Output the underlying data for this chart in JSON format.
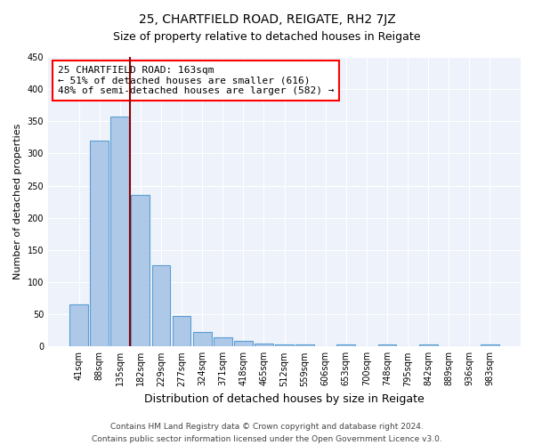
{
  "title": "25, CHARTFIELD ROAD, REIGATE, RH2 7JZ",
  "subtitle": "Size of property relative to detached houses in Reigate",
  "xlabel": "Distribution of detached houses by size in Reigate",
  "ylabel": "Number of detached properties",
  "categories": [
    "41sqm",
    "88sqm",
    "135sqm",
    "182sqm",
    "229sqm",
    "277sqm",
    "324sqm",
    "371sqm",
    "418sqm",
    "465sqm",
    "512sqm",
    "559sqm",
    "606sqm",
    "653sqm",
    "700sqm",
    "748sqm",
    "795sqm",
    "842sqm",
    "889sqm",
    "936sqm",
    "983sqm"
  ],
  "values": [
    65,
    320,
    358,
    235,
    126,
    47,
    23,
    14,
    9,
    5,
    3,
    3,
    0,
    3,
    0,
    3,
    0,
    3,
    0,
    0,
    3
  ],
  "bar_color": "#aec8e8",
  "bar_edge_color": "#5a9fd4",
  "vline_x_index": 2.5,
  "vline_color": "#8b0000",
  "annotation_line1": "25 CHARTFIELD ROAD: 163sqm",
  "annotation_line2": "← 51% of detached houses are smaller (616)",
  "annotation_line3": "48% of semi-detached houses are larger (582) →",
  "annotation_box_color": "white",
  "annotation_box_edge_color": "red",
  "ylim": [
    0,
    450
  ],
  "yticks": [
    0,
    50,
    100,
    150,
    200,
    250,
    300,
    350,
    400,
    450
  ],
  "footer_line1": "Contains HM Land Registry data © Crown copyright and database right 2024.",
  "footer_line2": "Contains public sector information licensed under the Open Government Licence v3.0.",
  "background_color": "#eef2fa",
  "title_fontsize": 10,
  "subtitle_fontsize": 9,
  "xlabel_fontsize": 9,
  "ylabel_fontsize": 8,
  "annotation_fontsize": 8,
  "footer_fontsize": 6.5,
  "tick_fontsize": 7
}
